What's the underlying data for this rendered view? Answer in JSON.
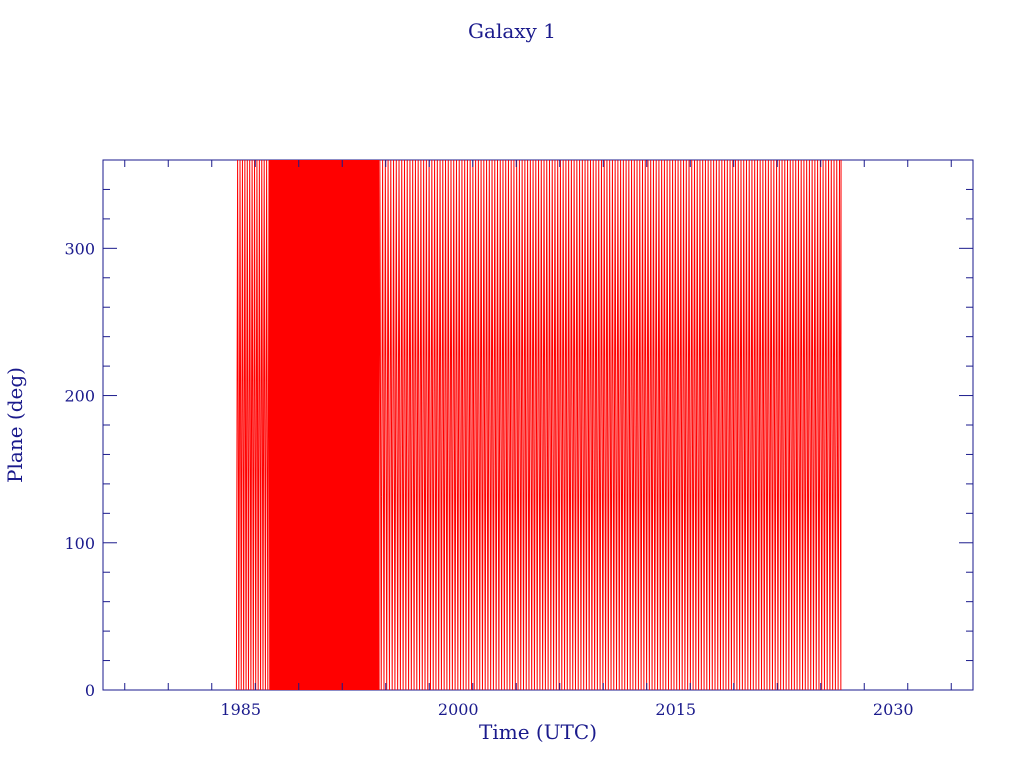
{
  "chart_data": {
    "type": "line",
    "title": "Galaxy 1",
    "xlabel": "Time (UTC)",
    "ylabel": "Plane (deg)",
    "xlim": [
      1975.5,
      2035.5
    ],
    "ylim": [
      0,
      360
    ],
    "x_ticks": [
      1985,
      2000,
      2015,
      2030
    ],
    "y_ticks": [
      0,
      100,
      200,
      300
    ],
    "grid": false,
    "series": [
      {
        "color": "#ff0000",
        "x_start": 1984.7,
        "x_end": 2026.4,
        "wrap_range": [
          0,
          360
        ],
        "periods": [
          {
            "from": 1984.7,
            "to": 1987.0,
            "cycles_per_year": 6.0
          },
          {
            "from": 1987.0,
            "to": 1990.5,
            "cycles_per_year": 8.5
          },
          {
            "from": 1990.5,
            "to": 1994.5,
            "cycles_per_year": 7.0
          },
          {
            "from": 1994.5,
            "to": 2026.4,
            "cycles_per_year": 5.3
          }
        ]
      }
    ]
  },
  "colors": {
    "axis": "#1a1a8c",
    "series": "#ff0000",
    "background": "#ffffff"
  }
}
